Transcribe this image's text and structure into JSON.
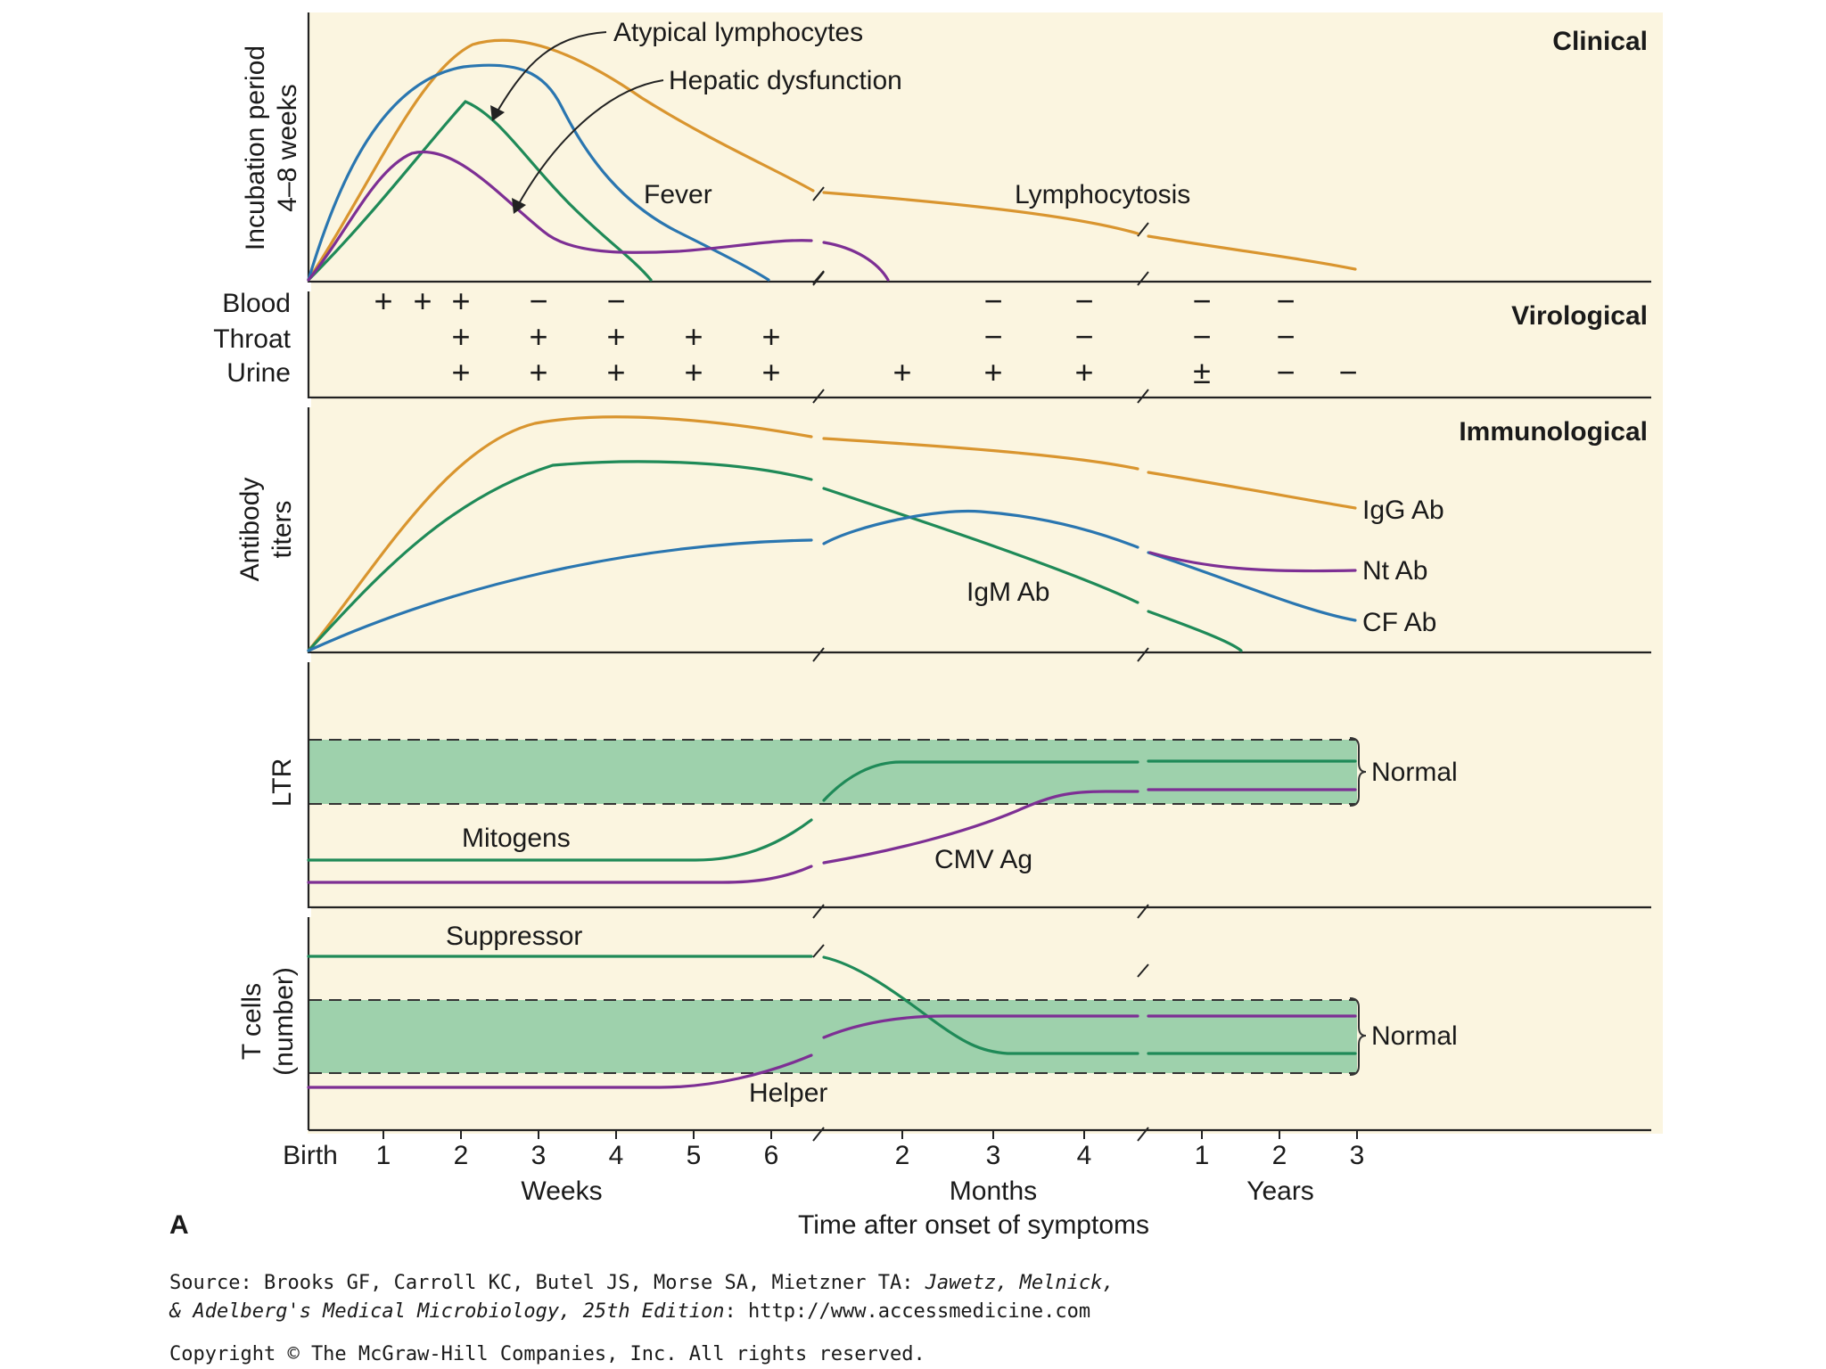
{
  "panels": {
    "clinical": {
      "title": "Clinical",
      "ylabel_line1": "Incubation period",
      "ylabel_line2": "4–8 weeks",
      "labels": {
        "atypical_lymphocytes": "Atypical lymphocytes",
        "hepatic_dysfunction": "Hepatic dysfunction",
        "fever": "Fever",
        "lymphocytosis": "Lymphocytosis"
      }
    },
    "virological": {
      "title": "Virological",
      "rows": [
        {
          "name": "Blood",
          "weeks": [
            "+",
            "+",
            "+",
            "−",
            "−",
            "",
            ""
          ],
          "months": [
            "",
            "−",
            "−"
          ],
          "years": [
            "−",
            "−",
            ""
          ]
        },
        {
          "name": "Throat",
          "weeks": [
            "",
            "",
            "+",
            "+",
            "+",
            "+",
            "+"
          ],
          "months": [
            "",
            "−",
            "−"
          ],
          "years": [
            "−",
            "−",
            ""
          ]
        },
        {
          "name": "Urine",
          "weeks": [
            "",
            "",
            "+",
            "+",
            "+",
            "+",
            "+"
          ],
          "months": [
            "+",
            "+",
            "+"
          ],
          "years": [
            "±",
            "−",
            "−"
          ]
        }
      ]
    },
    "immunological": {
      "title": "Immunological",
      "ylabel_line1": "Antibody",
      "ylabel_line2": "titers",
      "labels": {
        "igg": "IgG Ab",
        "nt": "Nt Ab",
        "cf": "CF Ab",
        "igm": "IgM Ab"
      }
    },
    "ltr": {
      "ylabel": "LTR",
      "normal_label": "Normal",
      "labels": {
        "mitogens": "Mitogens",
        "cmv": "CMV Ag"
      }
    },
    "tcells": {
      "ylabel_line1": "T cells",
      "ylabel_line2": "(number)",
      "normal_label": "Normal",
      "labels": {
        "suppressor": "Suppressor",
        "helper": "Helper"
      }
    }
  },
  "x_axis": {
    "birth_label": "Birth",
    "weeks_ticks": [
      "1",
      "2",
      "3",
      "4",
      "5",
      "6"
    ],
    "months_ticks": [
      "2",
      "3",
      "4"
    ],
    "years_ticks": [
      "1",
      "2",
      "3"
    ],
    "weeks_unit": "Weeks",
    "months_unit": "Months",
    "years_unit": "Years",
    "title": "Time after onset of symptoms"
  },
  "figure_letter": "A",
  "source": {
    "line1_a": "Source: Brooks GF, Carroll KC, Butel JS, Morse SA, Mietzner TA: ",
    "line1_b": "Jawetz, Melnick,",
    "line2_a": "& Adelberg's Medical Microbiology, 25th Edition",
    "line2_b": ": http://www.accessmedicine.com",
    "copyright": "Copyright © The McGraw-Hill Companies, Inc. All rights reserved."
  },
  "colors": {
    "background": "#fbf5e0",
    "orange": "#d9952f",
    "blue": "#2a76b0",
    "green": "#1f8a58",
    "purple": "#7d2f94",
    "band": "#9ed1ac"
  }
}
